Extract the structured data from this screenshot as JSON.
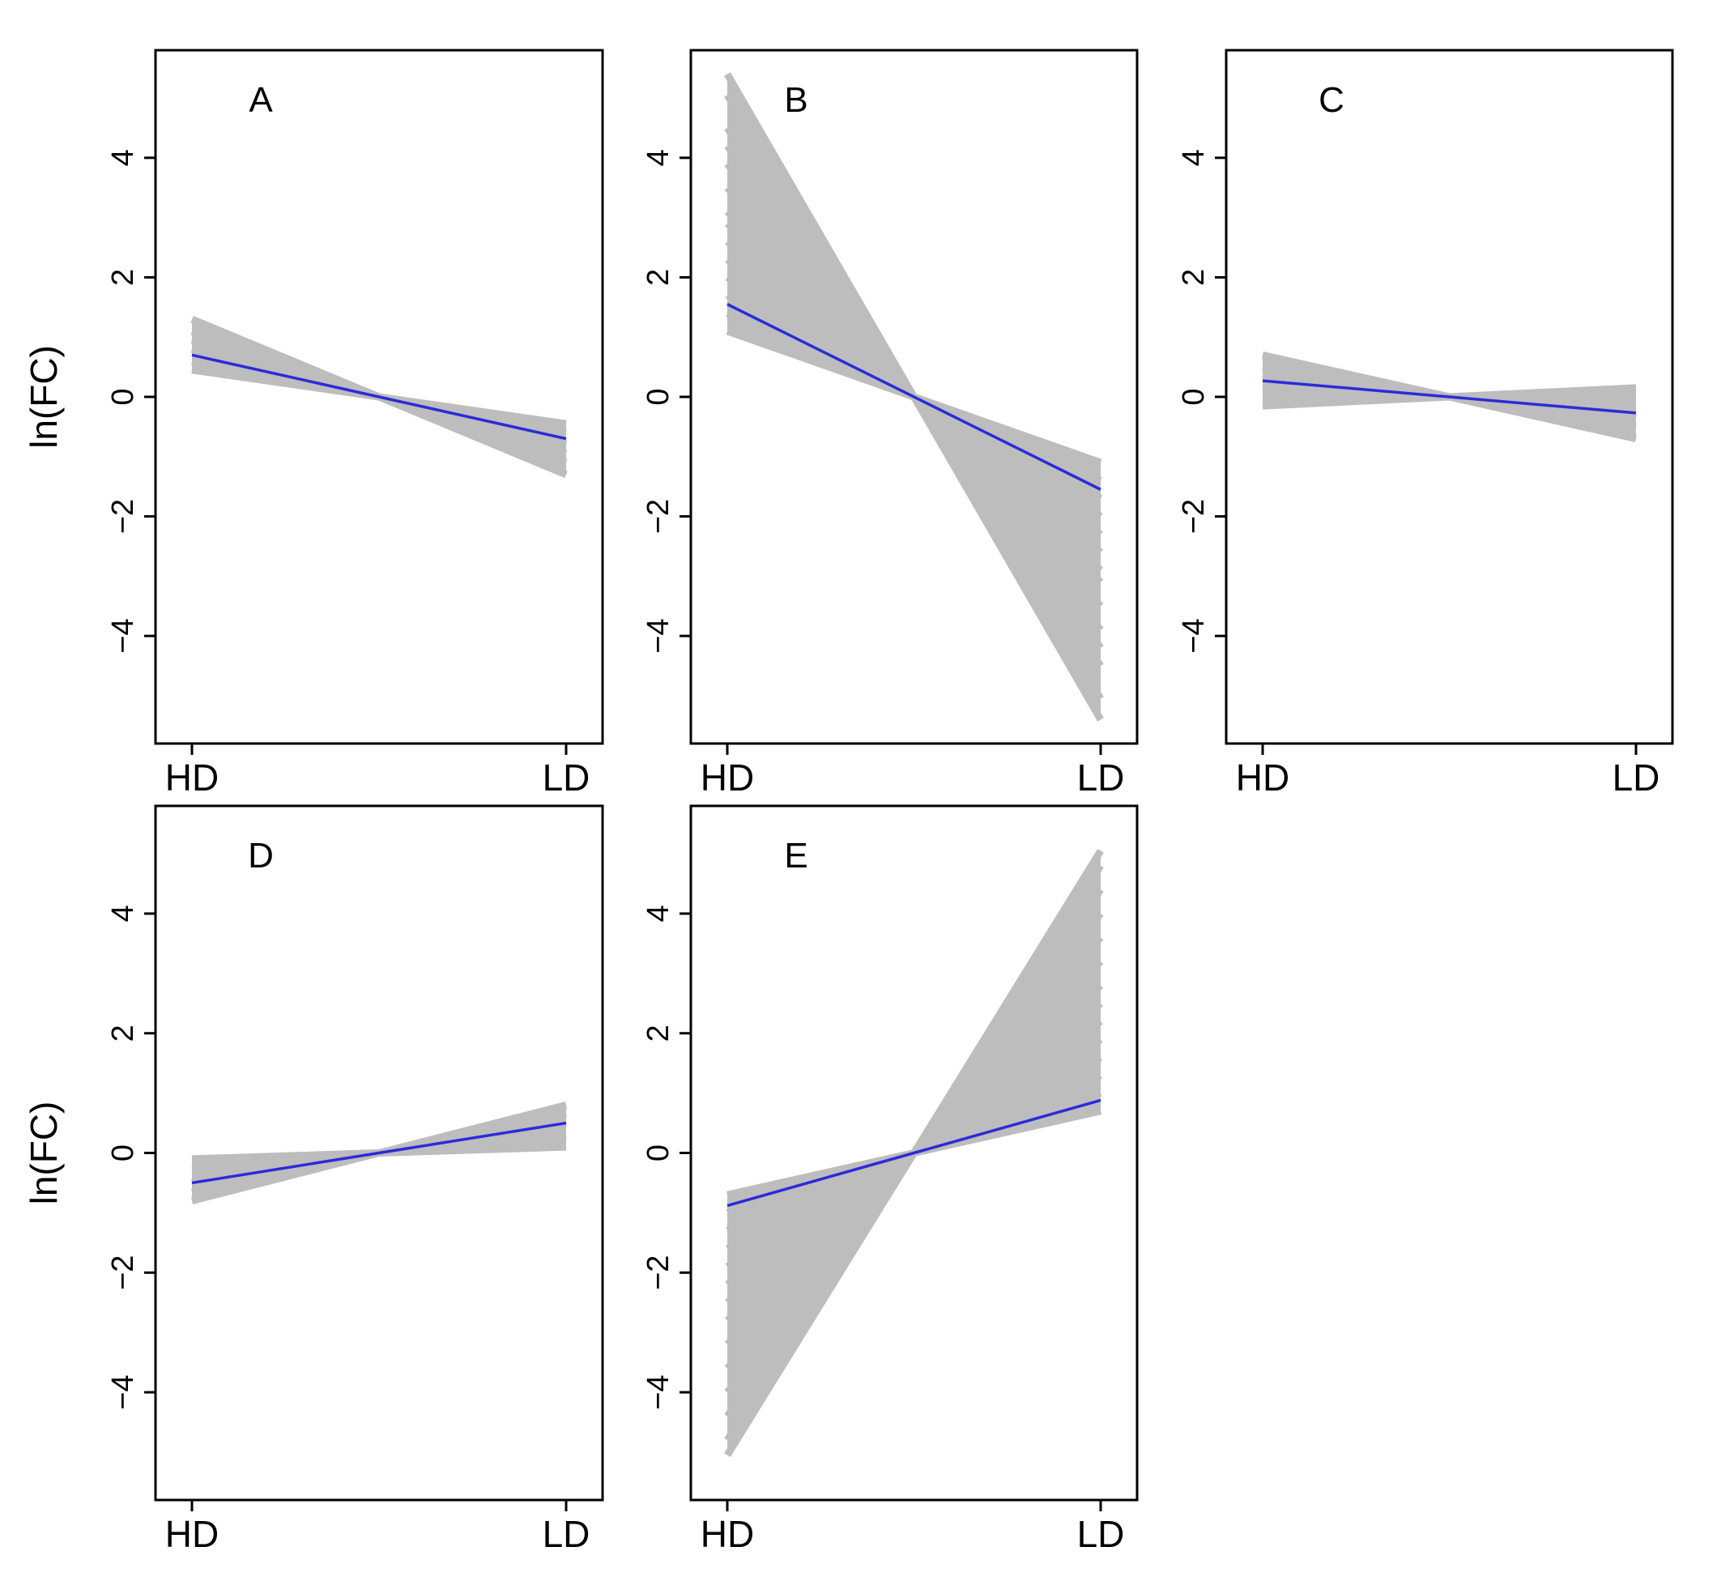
{
  "ylabel": "ln(FC)",
  "colors": {
    "band": "#bdbdbd",
    "mean": "#2b2bd9",
    "axis": "#000000",
    "background": "#ffffff"
  },
  "chart_data": [
    {
      "type": "line",
      "label": "A",
      "categories": [
        "HD",
        "LD"
      ],
      "ylabel": "ln(FC)",
      "ylim": [
        -5.8,
        5.8
      ],
      "yticks": [
        -4,
        -2,
        0,
        2,
        4
      ],
      "series": [
        {
          "kind": "mean",
          "values": [
            0.7,
            -0.7
          ]
        },
        {
          "kind": "band",
          "values": [
            0.45,
            -0.45
          ]
        },
        {
          "kind": "band",
          "values": [
            0.6,
            -0.6
          ]
        },
        {
          "kind": "band",
          "values": [
            0.8,
            -0.8
          ]
        },
        {
          "kind": "band",
          "values": [
            0.95,
            -0.95
          ]
        },
        {
          "kind": "band",
          "values": [
            1.1,
            -1.1
          ]
        },
        {
          "kind": "band",
          "values": [
            1.3,
            -1.3
          ]
        }
      ]
    },
    {
      "type": "line",
      "label": "B",
      "categories": [
        "HD",
        "LD"
      ],
      "ylabel": "",
      "ylim": [
        -5.8,
        5.8
      ],
      "yticks": [
        -4,
        -2,
        0,
        2,
        4
      ],
      "series": [
        {
          "kind": "mean",
          "values": [
            1.55,
            -1.55
          ]
        },
        {
          "kind": "band",
          "values": [
            1.1,
            -1.1
          ]
        },
        {
          "kind": "band",
          "values": [
            1.4,
            -1.4
          ]
        },
        {
          "kind": "band",
          "values": [
            1.7,
            -1.7
          ]
        },
        {
          "kind": "band",
          "values": [
            2.0,
            -2.0
          ]
        },
        {
          "kind": "band",
          "values": [
            2.3,
            -2.3
          ]
        },
        {
          "kind": "band",
          "values": [
            2.6,
            -2.6
          ]
        },
        {
          "kind": "band",
          "values": [
            2.9,
            -2.9
          ]
        },
        {
          "kind": "band",
          "values": [
            3.1,
            -3.1
          ]
        },
        {
          "kind": "band",
          "values": [
            3.5,
            -3.5
          ]
        },
        {
          "kind": "band",
          "values": [
            3.9,
            -3.9
          ]
        },
        {
          "kind": "band",
          "values": [
            4.2,
            -4.2
          ]
        },
        {
          "kind": "band",
          "values": [
            4.5,
            -4.5
          ]
        },
        {
          "kind": "band",
          "values": [
            5.05,
            -5.05
          ]
        },
        {
          "kind": "band",
          "values": [
            5.4,
            -5.4
          ]
        }
      ]
    },
    {
      "type": "line",
      "label": "C",
      "categories": [
        "HD",
        "LD"
      ],
      "ylabel": "",
      "ylim": [
        -5.8,
        5.8
      ],
      "yticks": [
        -4,
        -2,
        0,
        2,
        4
      ],
      "series": [
        {
          "kind": "mean",
          "values": [
            0.27,
            -0.27
          ]
        },
        {
          "kind": "band",
          "values": [
            -0.15,
            0.15
          ]
        },
        {
          "kind": "band",
          "values": [
            0.0,
            0.0
          ]
        },
        {
          "kind": "band",
          "values": [
            0.15,
            -0.15
          ]
        },
        {
          "kind": "band",
          "values": [
            0.35,
            -0.35
          ]
        },
        {
          "kind": "band",
          "values": [
            0.5,
            -0.5
          ]
        },
        {
          "kind": "band",
          "values": [
            0.7,
            -0.7
          ]
        }
      ]
    },
    {
      "type": "line",
      "label": "D",
      "categories": [
        "HD",
        "LD"
      ],
      "ylabel": "ln(FC)",
      "ylim": [
        -5.8,
        5.8
      ],
      "yticks": [
        -4,
        -2,
        0,
        2,
        4
      ],
      "series": [
        {
          "kind": "mean",
          "values": [
            -0.5,
            0.5
          ]
        },
        {
          "kind": "band",
          "values": [
            -0.1,
            0.1
          ]
        },
        {
          "kind": "band",
          "values": [
            -0.3,
            0.3
          ]
        },
        {
          "kind": "band",
          "values": [
            -0.5,
            0.5
          ]
        },
        {
          "kind": "band",
          "values": [
            -0.65,
            0.65
          ]
        },
        {
          "kind": "band",
          "values": [
            -0.8,
            0.8
          ]
        }
      ]
    },
    {
      "type": "line",
      "label": "E",
      "categories": [
        "HD",
        "LD"
      ],
      "ylabel": "",
      "ylim": [
        -5.8,
        5.8
      ],
      "yticks": [
        -4,
        -2,
        0,
        2,
        4
      ],
      "series": [
        {
          "kind": "mean",
          "values": [
            -0.88,
            0.88
          ]
        },
        {
          "kind": "band",
          "values": [
            -0.7,
            0.7
          ]
        },
        {
          "kind": "band",
          "values": [
            -1.0,
            1.0
          ]
        },
        {
          "kind": "band",
          "values": [
            -1.3,
            1.3
          ]
        },
        {
          "kind": "band",
          "values": [
            -1.6,
            1.6
          ]
        },
        {
          "kind": "band",
          "values": [
            -1.9,
            1.9
          ]
        },
        {
          "kind": "band",
          "values": [
            -2.2,
            2.2
          ]
        },
        {
          "kind": "band",
          "values": [
            -2.5,
            2.5
          ]
        },
        {
          "kind": "band",
          "values": [
            -2.8,
            2.8
          ]
        },
        {
          "kind": "band",
          "values": [
            -3.2,
            3.2
          ]
        },
        {
          "kind": "band",
          "values": [
            -3.6,
            3.6
          ]
        },
        {
          "kind": "band",
          "values": [
            -4.0,
            4.0
          ]
        },
        {
          "kind": "band",
          "values": [
            -4.4,
            4.4
          ]
        },
        {
          "kind": "band",
          "values": [
            -4.8,
            4.8
          ]
        },
        {
          "kind": "band",
          "values": [
            -5.05,
            5.05
          ]
        }
      ]
    }
  ]
}
